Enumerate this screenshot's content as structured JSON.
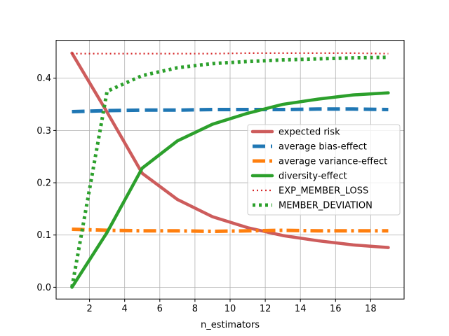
{
  "chart_data": {
    "type": "line",
    "xlabel": "n_estimators",
    "ylabel": "",
    "title": "",
    "xlim": [
      0.1,
      19.9
    ],
    "ylim": [
      -0.0225,
      0.4725
    ],
    "xticks": [
      2,
      4,
      6,
      8,
      10,
      12,
      14,
      16,
      18
    ],
    "yticks": [
      0.0,
      0.1,
      0.2,
      0.3,
      0.4
    ],
    "xtick_labels": [
      "2",
      "4",
      "6",
      "8",
      "10",
      "12",
      "14",
      "16",
      "18"
    ],
    "ytick_labels": [
      "0.0",
      "0.1",
      "0.2",
      "0.3",
      "0.4"
    ],
    "grid": true,
    "legend_position": "center-right",
    "x": [
      1,
      3,
      5,
      7,
      9,
      11,
      13,
      15,
      17,
      19
    ],
    "series": [
      {
        "name": "expected risk",
        "color": "#cd5c5c",
        "style": "solid",
        "values": [
          0.448,
          0.335,
          0.218,
          0.168,
          0.135,
          0.114,
          0.099,
          0.089,
          0.081,
          0.076
        ]
      },
      {
        "name": "average bias-effect",
        "color": "#1f77b4",
        "style": "dashed",
        "values": [
          0.336,
          0.338,
          0.339,
          0.339,
          0.34,
          0.34,
          0.34,
          0.341,
          0.341,
          0.34
        ]
      },
      {
        "name": "average variance-effect",
        "color": "#ff7f0e",
        "style": "dashdot",
        "values": [
          0.111,
          0.109,
          0.108,
          0.108,
          0.107,
          0.108,
          0.109,
          0.108,
          0.108,
          0.108
        ]
      },
      {
        "name": "diversity-effect",
        "color": "#2ca02c",
        "style": "solid",
        "values": [
          0.0,
          0.105,
          0.228,
          0.28,
          0.312,
          0.333,
          0.35,
          0.36,
          0.368,
          0.372
        ]
      },
      {
        "name": "EXP_MEMBER_LOSS",
        "color": "#d62728",
        "style": "dotted",
        "values": [
          0.447,
          0.447,
          0.447,
          0.447,
          0.447,
          0.448,
          0.448,
          0.448,
          0.448,
          0.447
        ]
      },
      {
        "name": "MEMBER_DEVIATION",
        "color": "#2ca02c",
        "style": "dotted",
        "values": [
          0.0,
          0.375,
          0.405,
          0.42,
          0.428,
          0.432,
          0.435,
          0.437,
          0.439,
          0.44
        ]
      }
    ]
  }
}
